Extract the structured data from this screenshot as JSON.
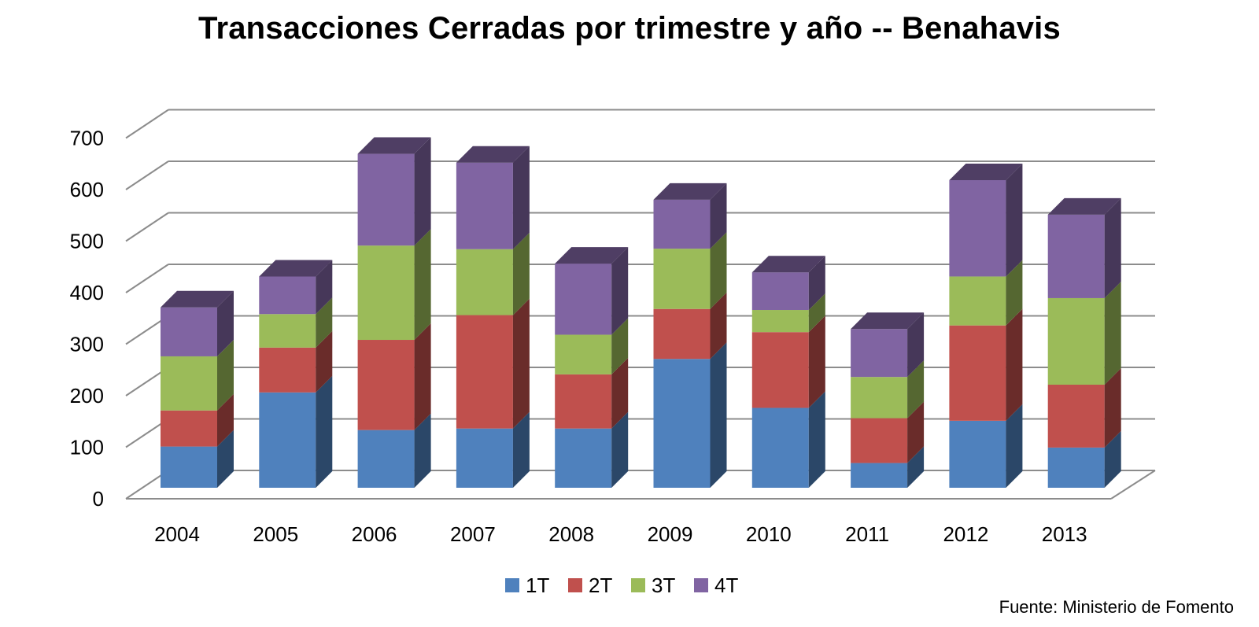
{
  "chart_data": {
    "type": "bar",
    "stacked": true,
    "title": "Transacciones Cerradas por trimestre y año -- Benahavis",
    "categories": [
      "2004",
      "2005",
      "2006",
      "2007",
      "2008",
      "2009",
      "2010",
      "2011",
      "2012",
      "2013"
    ],
    "series": [
      {
        "name": "1T",
        "color": "#4F81BD",
        "values": [
          80,
          185,
          112,
          115,
          115,
          250,
          155,
          48,
          130,
          78
        ]
      },
      {
        "name": "2T",
        "color": "#C0504D",
        "values": [
          70,
          87,
          175,
          220,
          105,
          97,
          147,
          87,
          185,
          122
        ]
      },
      {
        "name": "3T",
        "color": "#9BBB59",
        "values": [
          105,
          65,
          183,
          128,
          77,
          117,
          43,
          80,
          95,
          168
        ]
      },
      {
        "name": "4T",
        "color": "#8064A2",
        "values": [
          95,
          73,
          178,
          168,
          138,
          95,
          73,
          93,
          187,
          162
        ]
      }
    ],
    "yticks": [
      "0",
      "100",
      "200",
      "300",
      "400",
      "500",
      "600",
      "700"
    ],
    "ylim": [
      0,
      700
    ],
    "grid": true,
    "legend": "bottom",
    "view": "3d"
  },
  "source": "Fuente: Ministerio de Fomento"
}
